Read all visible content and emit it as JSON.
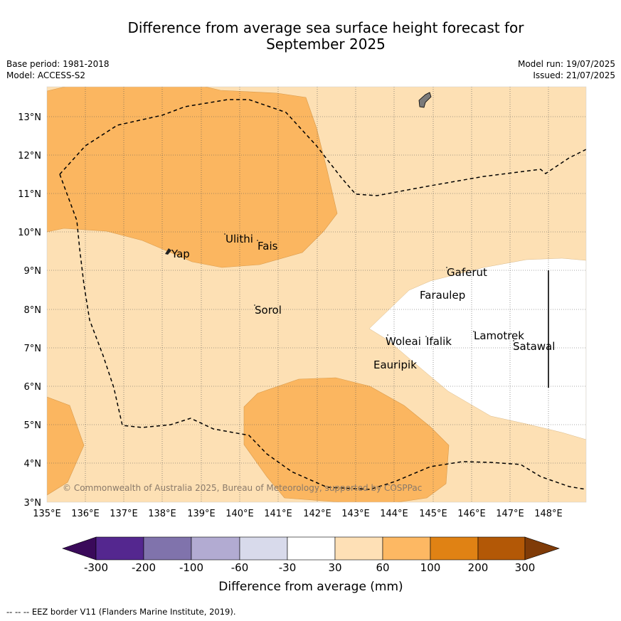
{
  "title_line1": "Difference from average sea surface height forecast for",
  "title_line2": "September 2025",
  "base_period": "Base period: 1981-2018",
  "model": "Model: ACCESS-S2",
  "model_run": "Model run: 19/07/2025",
  "issued": "Issued: 21/07/2025",
  "copyright": "© Commonwealth of Australia 2025, Bureau of Meteorology, supported by COSPPac",
  "footer": "-- -- -- EEZ border V11 (Flanders Marine Institute, 2019).",
  "map": {
    "lon_labels": [
      "135°E",
      "136°E",
      "137°E",
      "138°E",
      "139°E",
      "140°E",
      "141°E",
      "142°E",
      "143°E",
      "144°E",
      "145°E",
      "146°E",
      "147°E",
      "148°E"
    ],
    "lat_labels": [
      "3°N",
      "4°N",
      "5°N",
      "6°N",
      "7°N",
      "8°N",
      "9°N",
      "10°N",
      "11°N",
      "12°N",
      "13°N"
    ],
    "colors": {
      "low": "#fde0b4",
      "mid": "#fbb660",
      "neutral": "#ffffff",
      "land": "#7a7a7a"
    },
    "places": [
      "Ulithi",
      "Fais",
      "Yap",
      "Gaferut",
      "Faraulep",
      "Sorol",
      "Woleai",
      "Ifalik",
      "Lamotrek",
      "Satawal",
      "Eauripik"
    ]
  },
  "colorbar": {
    "label": "Difference from average (mm)",
    "ticks": [
      "-300",
      "-200",
      "-100",
      "-60",
      "-30",
      "30",
      "60",
      "100",
      "200",
      "300"
    ],
    "colors": [
      "#3a0a5a",
      "#54278f",
      "#8073ac",
      "#b2abd2",
      "#d8daeb",
      "#ffffff",
      "#fee0b6",
      "#fdb863",
      "#e08214",
      "#b35806",
      "#7f3b08"
    ]
  }
}
